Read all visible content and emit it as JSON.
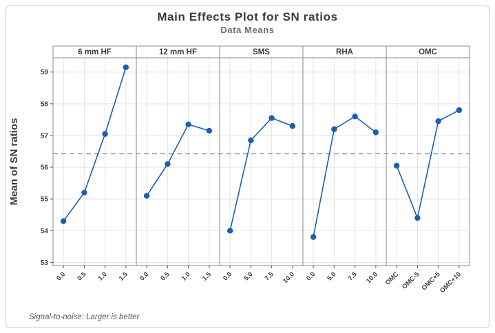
{
  "chart_data": {
    "type": "line",
    "title": "Main Effects Plot for SN ratios",
    "subtitle": "Data Means",
    "ylabel": "Mean of SN ratios",
    "footnote": "Signal-to-noise: Larger is better",
    "yticks": [
      53,
      54,
      55,
      56,
      57,
      58,
      59
    ],
    "ylim": [
      52.9,
      59.45
    ],
    "reference_line": 56.425,
    "grid": true,
    "legend": "none",
    "panels": [
      {
        "label": "6 mm HF",
        "categories": [
          "0.0",
          "0.5",
          "1.0",
          "1.5"
        ],
        "values": [
          54.3,
          55.2,
          57.05,
          59.15
        ]
      },
      {
        "label": "12 mm HF",
        "categories": [
          "0.0",
          "0.5",
          "1.0",
          "1.5"
        ],
        "values": [
          55.1,
          56.1,
          57.35,
          57.15
        ]
      },
      {
        "label": "SMS",
        "categories": [
          "0.0",
          "5.0",
          "7.5",
          "10.0"
        ],
        "values": [
          54.0,
          56.85,
          57.55,
          57.3
        ]
      },
      {
        "label": "RHA",
        "categories": [
          "0.0",
          "5.0",
          "7.5",
          "10.0"
        ],
        "values": [
          53.8,
          57.2,
          57.6,
          57.1
        ]
      },
      {
        "label": "OMC",
        "categories": [
          "OMC",
          "OMC-5",
          "OMC+5",
          "OMC+10"
        ],
        "values": [
          56.05,
          54.4,
          57.45,
          57.8
        ]
      }
    ],
    "colors": {
      "line": "#1E5EB0",
      "marker": "#1B5EB3",
      "grid": "#E3E3E3",
      "panel_border": "#8A8A8A",
      "reference": "#8C8C8C",
      "tick": "#555555",
      "text": "#3D3D3D",
      "title": "#3A3A3A",
      "subtitle": "#6E6E6E"
    }
  }
}
